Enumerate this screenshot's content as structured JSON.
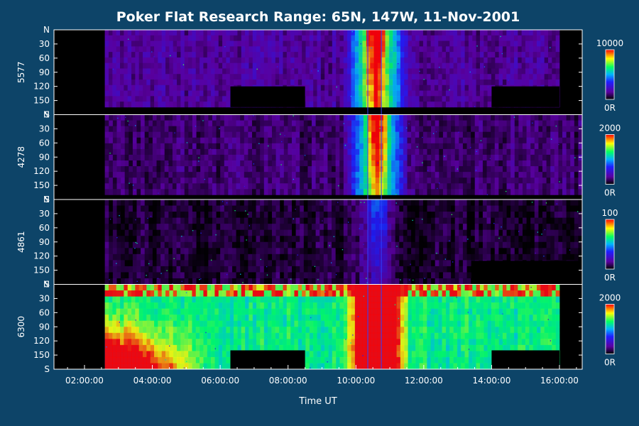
{
  "chart_data": {
    "type": "heatmap",
    "title": "Poker Flat Research Range: 65N, 147W, 11-Nov-2001",
    "xlabel": "Time UT",
    "x_range_hours": [
      1.1,
      16.67
    ],
    "x_ticks": [
      "02:00:00",
      "04:00:00",
      "06:00:00",
      "08:00:00",
      "10:00:00",
      "12:00:00",
      "14:00:00",
      "16:00:00"
    ],
    "x_tick_hours": [
      2,
      4,
      6,
      8,
      10,
      12,
      14,
      16
    ],
    "y_ticks": [
      "N",
      "30",
      "60",
      "90",
      "120",
      "150",
      "S"
    ],
    "y_tick_values": [
      0,
      30,
      60,
      90,
      120,
      150,
      180
    ],
    "colorscale": [
      "#000000",
      "#3a0066",
      "#2020ff",
      "#00a0ff",
      "#00ff80",
      "#ffff00",
      "#ff0000"
    ],
    "panels": [
      {
        "name": "5577",
        "cb_max": "10000",
        "cb_min": "0R",
        "data_start_hour": 2.6,
        "data_end_hour": 16.0,
        "data_end_lat": 164,
        "intensity": 0.15,
        "event_intensity": 0.9,
        "bright_south": 0.0,
        "speckle": 0.2,
        "dark_boxes": [
          [
            6.3,
            8.5,
            120
          ],
          [
            14.0,
            16.0,
            120
          ]
        ]
      },
      {
        "name": "4278",
        "cb_max": "2000",
        "cb_min": "0R",
        "data_start_hour": 2.6,
        "data_end_hour": 16.67,
        "data_end_lat": 170,
        "intensity": 0.1,
        "event_intensity": 0.85,
        "bright_south": 0.0,
        "speckle": 0.35,
        "dark_boxes": []
      },
      {
        "name": "4861",
        "cb_max": "100",
        "cb_min": "0R",
        "data_start_hour": 2.6,
        "data_end_hour": 16.67,
        "data_end_lat": 180,
        "intensity": 0.05,
        "event_intensity": 0.15,
        "bright_south": 0.0,
        "speckle": 0.5,
        "dark_boxes": [
          [
            13.4,
            16.67,
            130
          ]
        ]
      },
      {
        "name": "6300",
        "cb_max": "2000",
        "cb_min": "0R",
        "data_start_hour": 2.6,
        "data_end_hour": 16.0,
        "data_end_lat": 180,
        "intensity": 0.45,
        "event_intensity": 1.0,
        "bright_south": 0.9,
        "speckle": 0.25,
        "dark_boxes": [
          [
            6.3,
            8.5,
            140
          ],
          [
            14.0,
            16.0,
            140
          ]
        ]
      }
    ]
  }
}
